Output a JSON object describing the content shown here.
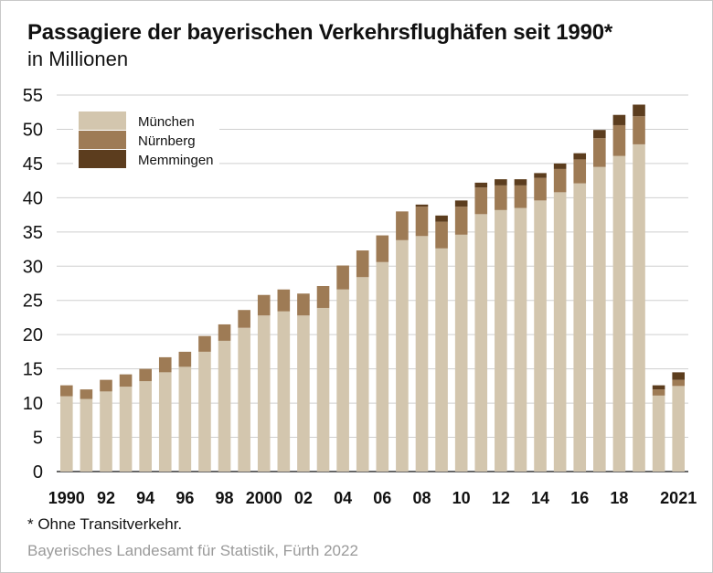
{
  "title": "Passagiere der bayerischen Verkehrsflughäfen seit 1990*",
  "subtitle": "in Millionen",
  "footnote": "* Ohne Transitverkehr.",
  "source": "Bayerisches Landesamt für Statistik, Fürth 2022",
  "chart_data": {
    "type": "bar",
    "stacked": true,
    "title": "Passagiere der bayerischen Verkehrsflughäfen seit 1990*",
    "ylabel": "in Millionen",
    "ylim": [
      0,
      55
    ],
    "yticks": [
      0,
      5,
      10,
      15,
      20,
      25,
      30,
      35,
      40,
      45,
      50,
      55
    ],
    "grid": true,
    "legend_position": "top-left",
    "categories": [
      "1990",
      "1991",
      "1992",
      "1993",
      "1994",
      "1995",
      "1996",
      "1997",
      "1998",
      "1999",
      "2000",
      "2001",
      "2002",
      "2003",
      "2004",
      "2005",
      "2006",
      "2007",
      "2008",
      "2009",
      "2010",
      "2011",
      "2012",
      "2013",
      "2014",
      "2015",
      "2016",
      "2017",
      "2018",
      "2019",
      "2020",
      "2021"
    ],
    "xtick_labels": [
      "1990",
      "",
      "92",
      "",
      "94",
      "",
      "96",
      "",
      "98",
      "",
      "2000",
      "",
      "02",
      "",
      "04",
      "",
      "06",
      "",
      "08",
      "",
      "10",
      "",
      "12",
      "",
      "14",
      "",
      "16",
      "",
      "18",
      "",
      "",
      "2021"
    ],
    "series": [
      {
        "name": "München",
        "color": "#d3c6ae",
        "values": [
          11.0,
          10.6,
          11.7,
          12.4,
          13.2,
          14.5,
          15.3,
          17.5,
          19.1,
          21.0,
          22.8,
          23.4,
          22.8,
          23.9,
          26.6,
          28.4,
          30.6,
          33.8,
          34.4,
          32.6,
          34.6,
          37.6,
          38.2,
          38.5,
          39.6,
          40.8,
          42.1,
          44.5,
          46.1,
          47.8,
          11.1,
          12.5
        ]
      },
      {
        "name": "Nürnberg",
        "color": "#9e7b55",
        "values": [
          1.6,
          1.4,
          1.7,
          1.8,
          1.8,
          2.2,
          2.2,
          2.3,
          2.4,
          2.6,
          3.0,
          3.2,
          3.2,
          3.2,
          3.5,
          3.9,
          3.9,
          4.2,
          4.3,
          3.9,
          4.1,
          3.9,
          3.6,
          3.3,
          3.3,
          3.4,
          3.5,
          4.2,
          4.5,
          4.1,
          0.9,
          0.9
        ]
      },
      {
        "name": "Memmingen",
        "color": "#5c3d1e",
        "values": [
          0,
          0,
          0,
          0,
          0,
          0,
          0,
          0,
          0,
          0,
          0,
          0,
          0,
          0,
          0,
          0,
          0,
          0,
          0.3,
          0.9,
          0.9,
          0.7,
          0.9,
          0.9,
          0.7,
          0.8,
          0.9,
          1.2,
          1.5,
          1.7,
          0.6,
          1.1
        ]
      }
    ]
  }
}
